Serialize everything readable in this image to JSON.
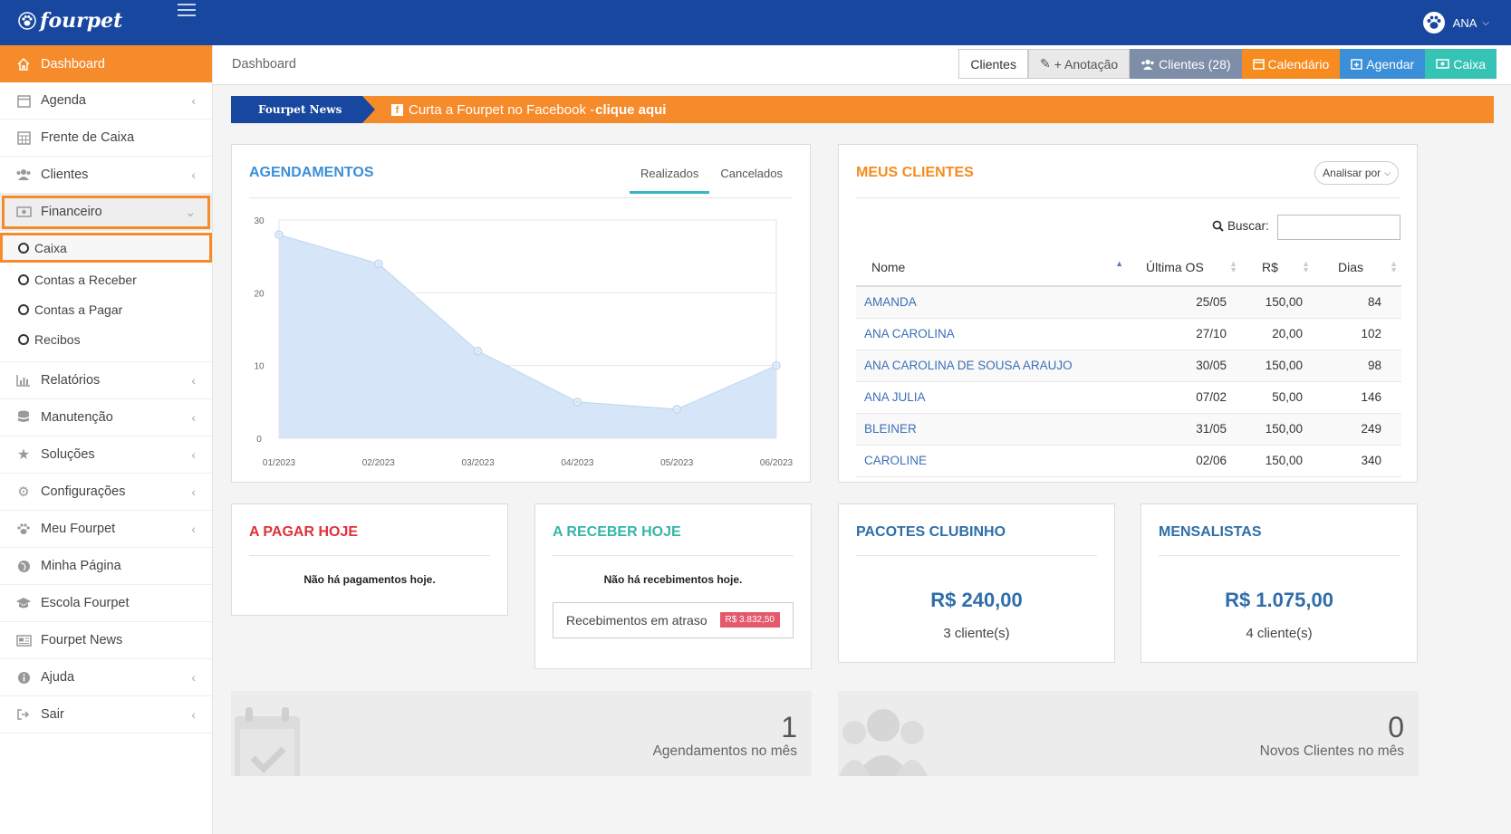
{
  "topbar": {
    "logo_text": "fourpet",
    "user_name": "ANA"
  },
  "sidebar": {
    "items": [
      {
        "label": "Dashboard",
        "icon": "home-icon"
      },
      {
        "label": "Agenda",
        "icon": "calendar-icon"
      },
      {
        "label": "Frente de Caixa",
        "icon": "table-icon"
      },
      {
        "label": "Clientes",
        "icon": "users-icon"
      },
      {
        "label": "Financeiro",
        "icon": "money-icon"
      },
      {
        "label": "Relatórios",
        "icon": "bar-chart-icon"
      },
      {
        "label": "Manutenção",
        "icon": "database-icon"
      },
      {
        "label": "Soluções",
        "icon": "star-icon"
      },
      {
        "label": "Configurações",
        "icon": "cogs-icon"
      },
      {
        "label": "Meu Fourpet",
        "icon": "paw-icon"
      },
      {
        "label": "Minha Página",
        "icon": "globe-icon"
      },
      {
        "label": "Escola Fourpet",
        "icon": "graduation-cap-icon"
      },
      {
        "label": "Fourpet News",
        "icon": "newspaper-icon"
      },
      {
        "label": "Ajuda",
        "icon": "info-icon"
      },
      {
        "label": "Sair",
        "icon": "sign-out-icon"
      }
    ],
    "financeiro_sub": [
      "Caixa",
      "Contas a Receber",
      "Contas a Pagar",
      "Recibos"
    ]
  },
  "header": {
    "breadcrumb": "Dashboard",
    "buttons": {
      "clientes": "Clientes",
      "anotacao": "+ Anotação",
      "clientes_count": "Clientes (28)",
      "calendario": "Calendário",
      "agendar": "Agendar",
      "caixa": "Caixa"
    }
  },
  "news": {
    "tag": "Fourpet News",
    "text": "Curta a Fourpet no Facebook - ",
    "link": "clique aqui"
  },
  "agendamentos": {
    "title": "AGENDAMENTOS",
    "tabs": [
      "Realizados",
      "Cancelados"
    ],
    "chart_data": {
      "type": "area",
      "categories": [
        "01/2023",
        "02/2023",
        "03/2023",
        "04/2023",
        "05/2023",
        "06/2023"
      ],
      "series": [
        {
          "values": [
            28,
            24,
            12,
            5,
            4,
            10
          ]
        }
      ],
      "ylim": [
        0,
        30
      ],
      "yticks": [
        0,
        10,
        20,
        30
      ],
      "color": "#d6e6f8",
      "grid": true
    }
  },
  "clientes": {
    "title": "MEUS CLIENTES",
    "analisar": "Analisar por",
    "search_label": "Buscar:",
    "columns": [
      "Nome",
      "Última OS",
      "R$",
      "Dias"
    ],
    "rows": [
      [
        "AMANDA",
        "25/05",
        "150,00",
        "84"
      ],
      [
        "ANA CAROLINA",
        "27/10",
        "20,00",
        "102"
      ],
      [
        "ANA CAROLINA DE SOUSA ARAUJO",
        "30/05",
        "150,00",
        "98"
      ],
      [
        "ANA JULIA",
        "07/02",
        "50,00",
        "146"
      ],
      [
        "BLEINER",
        "31/05",
        "150,00",
        "249"
      ],
      [
        "CAROLINE",
        "02/06",
        "150,00",
        "340"
      ]
    ]
  },
  "pagar": {
    "title": "A PAGAR HOJE",
    "message": "Não há pagamentos hoje."
  },
  "receber": {
    "title": "A RECEBER HOJE",
    "message": "Não há recebimentos hoje.",
    "atraso_label": "Recebimentos em atraso",
    "atraso_value": "R$ 3.832,50"
  },
  "pacotes": {
    "title": "PACOTES CLUBINHO",
    "value": "R$ 240,00",
    "sub": "3 cliente(s)"
  },
  "mensalistas": {
    "title": "MENSALISTAS",
    "value": "R$ 1.075,00",
    "sub": "4 cliente(s)"
  },
  "stats": {
    "agendamentos_mes": {
      "value": "1",
      "label": "Agendamentos no mês"
    },
    "novos_clientes": {
      "value": "0",
      "label": "Novos Clientes no mês"
    }
  }
}
